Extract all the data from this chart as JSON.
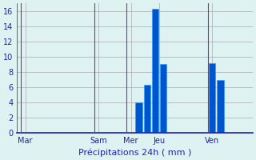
{
  "title": "",
  "xlabel": "Précipitations 24h ( mm )",
  "ylabel": "",
  "background_color": "#dff2f2",
  "bar_color": "#0055cc",
  "bar_edge_color": "#3399ff",
  "grid_color": "#aaaaaa",
  "text_color": "#2222aa",
  "ylim": [
    0,
    17
  ],
  "yticks": [
    0,
    2,
    4,
    6,
    8,
    10,
    12,
    14,
    16
  ],
  "bar_positions": [
    0,
    1,
    2,
    3,
    4,
    5,
    6,
    7,
    8,
    9,
    10,
    11,
    12,
    13,
    14,
    15,
    16,
    17,
    18,
    19,
    20,
    21,
    22,
    23,
    24,
    25,
    26,
    27,
    28
  ],
  "bar_values": [
    0,
    0,
    0,
    0,
    0,
    0,
    0,
    0,
    0,
    0,
    0,
    0,
    0,
    0,
    4,
    6.3,
    16.3,
    9,
    0,
    0,
    0,
    0,
    0,
    9.2,
    7,
    0,
    0,
    0,
    0
  ],
  "day_labels": [
    "Mar",
    "Sam",
    "Mer",
    "Jeu",
    "Ven"
  ],
  "day_positions": [
    0,
    9,
    13,
    16.5,
    23
  ],
  "vline_positions": [
    0,
    9,
    13,
    23
  ],
  "n_bars": 29
}
